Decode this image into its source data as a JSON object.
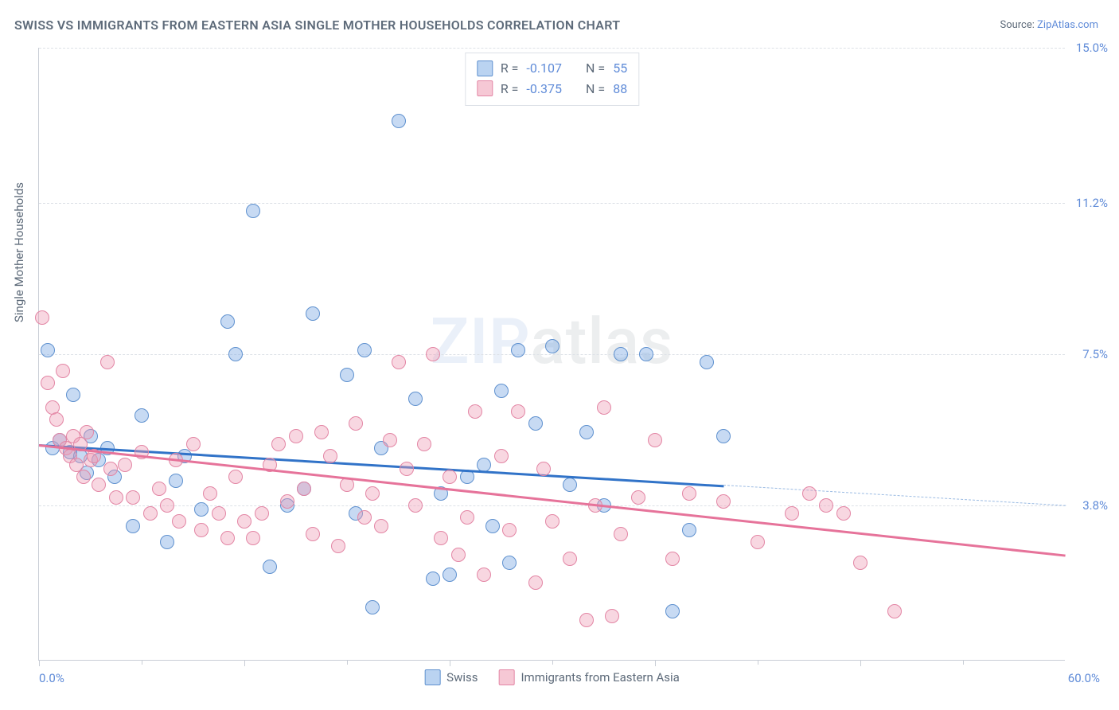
{
  "title": "SWISS VS IMMIGRANTS FROM EASTERN ASIA SINGLE MOTHER HOUSEHOLDS CORRELATION CHART",
  "source_label": "Source: ",
  "source_name": "ZipAtlas.com",
  "y_axis_title": "Single Mother Households",
  "watermark_bold": "ZIP",
  "watermark_rest": "atlas",
  "chart": {
    "type": "scatter",
    "background_color": "#ffffff",
    "grid_color": "#dde1e7",
    "axis_color": "#c9ced6",
    "xlim": [
      0,
      60
    ],
    "ylim": [
      0,
      15
    ],
    "x_start_label": "0.0%",
    "x_end_label": "60.0%",
    "xticks": [
      0,
      6,
      12,
      18,
      24,
      30,
      36,
      42,
      48,
      54
    ],
    "right_ticks": [
      {
        "v": 15.0,
        "label": "15.0%"
      },
      {
        "v": 11.2,
        "label": "11.2%"
      },
      {
        "v": 7.5,
        "label": "7.5%"
      },
      {
        "v": 3.8,
        "label": "3.8%"
      }
    ],
    "marker_radius": 9,
    "marker_stroke": 1.5,
    "series": [
      {
        "name": "Swiss",
        "color_fill": "rgba(130,174,229,0.45)",
        "color_stroke": "#5f91cf",
        "trend_color": "#3173c8",
        "stats": {
          "R_label": "R = ",
          "R": "-0.107",
          "N_label": "N = ",
          "N": "55"
        },
        "trend": {
          "x1": 0,
          "y1": 5.3,
          "x2_solid": 40,
          "y2_solid": 4.3,
          "x2_dash": 60,
          "y2_dash": 3.8
        },
        "points": [
          [
            0.5,
            7.6
          ],
          [
            0.8,
            5.2
          ],
          [
            1.2,
            5.4
          ],
          [
            1.8,
            5.1
          ],
          [
            2.0,
            6.5
          ],
          [
            2.4,
            5.0
          ],
          [
            2.8,
            4.6
          ],
          [
            3.0,
            5.5
          ],
          [
            3.5,
            4.9
          ],
          [
            4.0,
            5.2
          ],
          [
            4.4,
            4.5
          ],
          [
            5.5,
            3.3
          ],
          [
            6.0,
            6.0
          ],
          [
            7.5,
            2.9
          ],
          [
            8.0,
            4.4
          ],
          [
            8.5,
            5.0
          ],
          [
            9.5,
            3.7
          ],
          [
            11.0,
            8.3
          ],
          [
            11.5,
            7.5
          ],
          [
            12.5,
            11.0
          ],
          [
            13.5,
            2.3
          ],
          [
            14.5,
            3.8
          ],
          [
            15.5,
            4.2
          ],
          [
            16.0,
            8.5
          ],
          [
            18.0,
            7.0
          ],
          [
            18.5,
            3.6
          ],
          [
            19.0,
            7.6
          ],
          [
            19.5,
            1.3
          ],
          [
            20.0,
            5.2
          ],
          [
            21.0,
            13.2
          ],
          [
            22.0,
            6.4
          ],
          [
            23.0,
            2.0
          ],
          [
            23.5,
            4.1
          ],
          [
            24.0,
            2.1
          ],
          [
            25.0,
            4.5
          ],
          [
            26.0,
            4.8
          ],
          [
            26.5,
            3.3
          ],
          [
            27.0,
            6.6
          ],
          [
            27.5,
            2.4
          ],
          [
            28.0,
            7.6
          ],
          [
            29.0,
            5.8
          ],
          [
            30.0,
            7.7
          ],
          [
            31.0,
            4.3
          ],
          [
            32.0,
            5.6
          ],
          [
            33.0,
            3.8
          ],
          [
            34.0,
            7.5
          ],
          [
            35.5,
            7.5
          ],
          [
            37.0,
            1.2
          ],
          [
            38.0,
            3.2
          ],
          [
            39.0,
            7.3
          ],
          [
            40.0,
            5.5
          ]
        ]
      },
      {
        "name": "Immigrants from Eastern Asia",
        "color_fill": "rgba(238,155,179,0.40)",
        "color_stroke": "#e386a5",
        "trend_color": "#e6739a",
        "stats": {
          "R_label": "R = ",
          "R": "-0.375",
          "N_label": "N = ",
          "N": "88"
        },
        "trend": {
          "x1": 0,
          "y1": 5.3,
          "x2_solid": 60,
          "y2_solid": 2.6,
          "x2_dash": 60,
          "y2_dash": 2.6
        },
        "points": [
          [
            0.2,
            8.4
          ],
          [
            0.5,
            6.8
          ],
          [
            0.8,
            6.2
          ],
          [
            1.0,
            5.9
          ],
          [
            1.2,
            5.4
          ],
          [
            1.4,
            7.1
          ],
          [
            1.6,
            5.2
          ],
          [
            1.8,
            5.0
          ],
          [
            2.0,
            5.5
          ],
          [
            2.2,
            4.8
          ],
          [
            2.4,
            5.3
          ],
          [
            2.6,
            4.5
          ],
          [
            2.8,
            5.6
          ],
          [
            3.0,
            4.9
          ],
          [
            3.2,
            5.0
          ],
          [
            3.5,
            4.3
          ],
          [
            4.0,
            7.3
          ],
          [
            4.2,
            4.7
          ],
          [
            4.5,
            4.0
          ],
          [
            5.0,
            4.8
          ],
          [
            5.5,
            4.0
          ],
          [
            6.0,
            5.1
          ],
          [
            6.5,
            3.6
          ],
          [
            7.0,
            4.2
          ],
          [
            7.5,
            3.8
          ],
          [
            8.0,
            4.9
          ],
          [
            8.2,
            3.4
          ],
          [
            9.0,
            5.3
          ],
          [
            9.5,
            3.2
          ],
          [
            10.0,
            4.1
          ],
          [
            10.5,
            3.6
          ],
          [
            11.0,
            3.0
          ],
          [
            11.5,
            4.5
          ],
          [
            12.0,
            3.4
          ],
          [
            12.5,
            3.0
          ],
          [
            13.0,
            3.6
          ],
          [
            13.5,
            4.8
          ],
          [
            14.0,
            5.3
          ],
          [
            14.5,
            3.9
          ],
          [
            15.0,
            5.5
          ],
          [
            15.5,
            4.2
          ],
          [
            16.0,
            3.1
          ],
          [
            16.5,
            5.6
          ],
          [
            17.0,
            5.0
          ],
          [
            17.5,
            2.8
          ],
          [
            18.0,
            4.3
          ],
          [
            18.5,
            5.8
          ],
          [
            19.0,
            3.5
          ],
          [
            19.5,
            4.1
          ],
          [
            20.0,
            3.3
          ],
          [
            20.5,
            5.4
          ],
          [
            21.0,
            7.3
          ],
          [
            21.5,
            4.7
          ],
          [
            22.0,
            3.8
          ],
          [
            22.5,
            5.3
          ],
          [
            23.0,
            7.5
          ],
          [
            23.5,
            3.0
          ],
          [
            24.0,
            4.5
          ],
          [
            24.5,
            2.6
          ],
          [
            25.0,
            3.5
          ],
          [
            25.5,
            6.1
          ],
          [
            26.0,
            2.1
          ],
          [
            27.0,
            5.0
          ],
          [
            27.5,
            3.2
          ],
          [
            28.0,
            6.1
          ],
          [
            29.0,
            1.9
          ],
          [
            29.5,
            4.7
          ],
          [
            30.0,
            3.4
          ],
          [
            31.0,
            2.5
          ],
          [
            32.0,
            1.0
          ],
          [
            32.5,
            3.8
          ],
          [
            33.0,
            6.2
          ],
          [
            33.5,
            1.1
          ],
          [
            34.0,
            3.1
          ],
          [
            35.0,
            4.0
          ],
          [
            36.0,
            5.4
          ],
          [
            37.0,
            2.5
          ],
          [
            38.0,
            4.1
          ],
          [
            40.0,
            3.9
          ],
          [
            42.0,
            2.9
          ],
          [
            44.0,
            3.6
          ],
          [
            46.0,
            3.8
          ],
          [
            48.0,
            2.4
          ],
          [
            50.0,
            1.2
          ],
          [
            45.0,
            4.1
          ],
          [
            47.0,
            3.6
          ]
        ]
      }
    ]
  }
}
